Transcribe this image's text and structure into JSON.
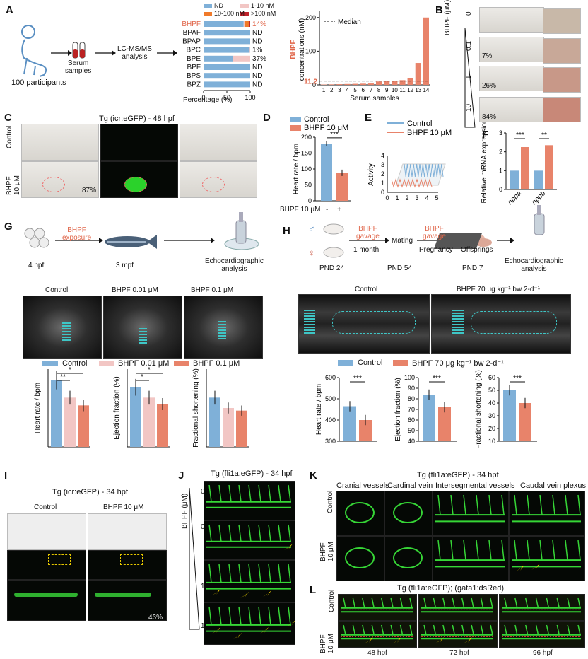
{
  "panels": {
    "A": "A",
    "B": "B",
    "C": "C",
    "D": "D",
    "E": "E",
    "F": "F",
    "G": "G",
    "H": "H",
    "I": "I",
    "J": "J",
    "K": "K",
    "L": "L"
  },
  "colors": {
    "blue": "#7fb0d8",
    "pink": "#f2c6c4",
    "orange": "#e0664a",
    "red": "#c0222a",
    "salmon": "#e8836a",
    "teal": "#3ec6c6",
    "green": "#36d636",
    "yellow": "#ffe000"
  },
  "A": {
    "participants": "100 participants",
    "serum": "Serum\nsamples",
    "analysis": "LC-MS/MS\nanalysis",
    "legend": [
      "ND",
      "1-10 nM",
      "10-100 nM",
      ">100 nM"
    ],
    "compounds": [
      "BHPF",
      "BPAF",
      "BPAP",
      "BPC",
      "BPE",
      "BPF",
      "BPS",
      "BPZ"
    ],
    "results": [
      "14%",
      "ND",
      "ND",
      "1%",
      "37%",
      "ND",
      "ND",
      "ND"
    ],
    "xlabel": "Percentage (%)",
    "xticks": [
      "0",
      "50",
      "100"
    ],
    "bar_ylabel_a": "BHPF",
    "bar_ylabel_b": "concentrations (nM)",
    "yticks": [
      "0",
      "100",
      "200"
    ],
    "median_label": "Median",
    "median_value": "11.2",
    "samples": [
      "1",
      "2",
      "3",
      "4",
      "5",
      "6",
      "7",
      "8",
      "9",
      "10",
      "11",
      "12",
      "13",
      "14"
    ],
    "bar_xlabel": "Serum samples"
  },
  "B": {
    "ylabel": "BHPF (μM)",
    "doses": [
      "0",
      "0.1",
      "1",
      "10"
    ],
    "pcts": [
      "",
      "7%",
      "26%",
      "84%"
    ]
  },
  "C": {
    "title": "Tg (icr:eGFP) - 48 hpf",
    "rows": [
      "Control",
      "BHPF\n10 μM"
    ],
    "pct": "87%"
  },
  "D": {
    "legend": [
      "Control",
      "BHPF 10 μM"
    ],
    "ylabel": "Heart rate / bpm",
    "yticks": [
      "0",
      "50",
      "100",
      "150",
      "200"
    ],
    "sig": "***",
    "xrow_label": "BHPF 10 μM",
    "xrow": [
      "-",
      "+"
    ]
  },
  "E": {
    "legend": [
      "Control",
      "BHPF 10 μM"
    ],
    "ylabel": "Activity",
    "yticks": [
      "0",
      "1",
      "2",
      "3",
      "4"
    ],
    "xticks": [
      "0",
      "1",
      "2",
      "3",
      "4",
      "5"
    ]
  },
  "F": {
    "ylabel": "Relative mRNA expression",
    "yticks": [
      "0",
      "1",
      "2",
      "3"
    ],
    "genes": [
      "nppa",
      "nppb"
    ],
    "sig": [
      "***",
      "**"
    ]
  },
  "G": {
    "steps": [
      "4 hpf",
      "3 mpf",
      "Echocardiographic\nanalysis"
    ],
    "arrow": "BHPF\nexposure",
    "images": [
      "Control",
      "BHPF 0.01 μM",
      "BHPF 0.1 μM"
    ],
    "legend": [
      "Control",
      "BHPF 0.01 μM",
      "BHPF 0.1 μM"
    ],
    "charts": [
      {
        "ylabel": "Heart rate / bpm",
        "sig": [
          "**",
          "*"
        ]
      },
      {
        "ylabel": "Ejection fraction (%)",
        "sig": [
          "*",
          "*"
        ]
      },
      {
        "ylabel": "Fractional shortening (%)",
        "sig": []
      }
    ]
  },
  "H": {
    "male": "PND 24",
    "mating": "Mating",
    "pnd54": "PND 54",
    "pnd7": "PND 7",
    "offspring": "Offsprings",
    "echo": "Echocardiographic\nanalysis",
    "gavage1": "BHPF\ngavage",
    "month": "1 month",
    "gavage2": "BHPF\ngavage",
    "pregnancy": "Pregnancy",
    "images": [
      "Control",
      "BHPF 70 μg kg⁻¹ bw 2-d⁻¹"
    ],
    "legend": [
      "Control",
      "BHPF 70 μg kg⁻¹ bw 2-d⁻¹"
    ],
    "charts": [
      {
        "ylabel": "Heart rate / bpm",
        "yticks": [
          "300",
          "400",
          "500",
          "600"
        ],
        "sig": "***"
      },
      {
        "ylabel": "Ejection fraction (%)",
        "yticks": [
          "40",
          "50",
          "60",
          "70",
          "80",
          "90",
          "100"
        ],
        "sig": "***"
      },
      {
        "ylabel": "Fractional shortening (%)",
        "yticks": [
          "10",
          "20",
          "30",
          "40",
          "50",
          "60"
        ],
        "sig": "***"
      }
    ]
  },
  "I": {
    "title": "Tg (icr:eGFP) - 34 hpf",
    "cols": [
      "Control",
      "BHPF 10 μM"
    ],
    "pct": "46%"
  },
  "J": {
    "title": "Tg (fli1a:eGFP) - 34 hpf",
    "ylabel": "BHPF (μM)",
    "doses": [
      "0",
      "0.1",
      "1",
      "10"
    ]
  },
  "K": {
    "title": "Tg (fli1a:eGFP) - 34 hpf",
    "cols": [
      "Cranial vessels",
      "Cardinal vein",
      "Intersegmental vessels",
      "Caudal vein plexus"
    ],
    "rows": [
      "Control",
      "BHPF\n10 μM"
    ]
  },
  "L": {
    "title": "Tg (fli1a:eGFP); (gata1:dsRed)",
    "rows": [
      "Control",
      "BHPF\n10 μM"
    ],
    "times": [
      "48 hpf",
      "72 hpf",
      "96 hpf"
    ]
  },
  "chart_data": [
    {
      "type": "bar",
      "panel": "A-percentage",
      "categories": [
        "BHPF",
        "BPAF",
        "BPAP",
        "BPC",
        "BPE",
        "BPF",
        "BPS",
        "BPZ"
      ],
      "series": [
        {
          "name": "ND",
          "values": [
            86,
            100,
            100,
            99,
            63,
            100,
            100,
            100
          ]
        },
        {
          "name": "1-10 nM",
          "values": [
            3,
            0,
            0,
            1,
            37,
            0,
            0,
            0
          ]
        },
        {
          "name": "10-100 nM",
          "values": [
            8,
            0,
            0,
            0,
            0,
            0,
            0,
            0
          ]
        },
        {
          "name": ">100 nM",
          "values": [
            3,
            0,
            0,
            0,
            0,
            0,
            0,
            0
          ]
        }
      ],
      "xlabel": "Percentage (%)",
      "xlim": [
        0,
        100
      ]
    },
    {
      "type": "bar",
      "panel": "A-concentration",
      "categories": [
        "1",
        "2",
        "3",
        "4",
        "5",
        "6",
        "7",
        "8",
        "9",
        "10",
        "11",
        "12",
        "13",
        "14"
      ],
      "values": [
        1,
        1.5,
        2,
        2.5,
        3,
        3.5,
        4,
        10,
        11,
        12,
        14,
        20,
        65,
        200
      ],
      "ylabel": "BHPF concentrations (nM)",
      "ylim": [
        0,
        210
      ],
      "median": 11.2
    },
    {
      "type": "bar",
      "panel": "D",
      "categories": [
        "Control",
        "BHPF 10 μM"
      ],
      "values": [
        180,
        88
      ],
      "errors": [
        8,
        10
      ],
      "ylabel": "Heart rate / bpm",
      "ylim": [
        0,
        200
      ]
    },
    {
      "type": "bar",
      "panel": "F",
      "categories": [
        "nppa",
        "nppb"
      ],
      "series": [
        {
          "name": "Control",
          "values": [
            1.0,
            1.0
          ]
        },
        {
          "name": "BHPF 10 μM",
          "values": [
            2.25,
            2.35
          ]
        }
      ],
      "ylabel": "Relative mRNA expression",
      "ylim": [
        0,
        3
      ]
    },
    {
      "type": "bar",
      "panel": "G-heart",
      "categories": [
        "Control",
        "BHPF 0.01 μM",
        "BHPF 0.1 μM"
      ],
      "values": [
        258,
        190,
        160
      ],
      "ylabel": "Heart rate / bpm"
    },
    {
      "type": "bar",
      "panel": "G-EF",
      "categories": [
        "Control",
        "BHPF 0.01 μM",
        "BHPF 0.1 μM"
      ],
      "values": [
        46,
        38,
        33
      ],
      "ylabel": "Ejection fraction (%)"
    },
    {
      "type": "bar",
      "panel": "G-FS",
      "categories": [
        "Control",
        "BHPF 0.01 μM",
        "BHPF 0.1 μM"
      ],
      "values": [
        19,
        15,
        14
      ],
      "ylabel": "Fractional shortening (%)"
    },
    {
      "type": "bar",
      "panel": "H-heart",
      "categories": [
        "Control",
        "BHPF 70 μg kg⁻¹ bw 2-d⁻¹"
      ],
      "values": [
        465,
        400
      ],
      "ylabel": "Heart rate / bpm",
      "ylim": [
        300,
        600
      ]
    },
    {
      "type": "bar",
      "panel": "H-EF",
      "categories": [
        "Control",
        "BHPF 70 μg kg⁻¹ bw 2-d⁻¹"
      ],
      "values": [
        84,
        72
      ],
      "ylabel": "Ejection fraction (%)",
      "ylim": [
        40,
        100
      ]
    },
    {
      "type": "bar",
      "panel": "H-FS",
      "categories": [
        "Control",
        "BHPF 70 μg kg⁻¹ bw 2-d⁻¹"
      ],
      "values": [
        50,
        40
      ],
      "ylabel": "Fractional shortening (%)",
      "ylim": [
        10,
        60
      ]
    }
  ]
}
